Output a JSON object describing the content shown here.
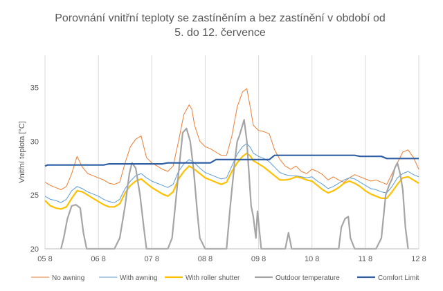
{
  "chart_data": {
    "type": "line",
    "title": "Porovnání vnitřní teploty se zastíněním a bez zastínění v období od 5. do 12. července",
    "title_lines": [
      "Porovnání vnitřní teploty se zastíněním a bez zastínění v období od",
      "5. do 12. července"
    ],
    "xlabel": "",
    "ylabel": "Vnitřní teplota [°C]",
    "xlim": [
      0,
      7
    ],
    "ylim": [
      20,
      38
    ],
    "x_ticks": [
      {
        "x": 0,
        "label": "05 8"
      },
      {
        "x": 1,
        "label": "06 8"
      },
      {
        "x": 2,
        "label": "07 8"
      },
      {
        "x": 3,
        "label": "08 8"
      },
      {
        "x": 4,
        "label": "09 8"
      },
      {
        "x": 5,
        "label": "10 8"
      },
      {
        "x": 6,
        "label": "11 8"
      },
      {
        "x": 7,
        "label": "12 8"
      }
    ],
    "y_ticks": [
      {
        "y": 20,
        "label": "20"
      },
      {
        "y": 25,
        "label": "25"
      },
      {
        "y": 30,
        "label": "30"
      },
      {
        "y": 35,
        "label": "35"
      }
    ],
    "grid": "vertical",
    "legend_position": "bottom",
    "series": [
      {
        "name": "No awning",
        "color": "#ED7D31",
        "width": 1,
        "points": [
          [
            0,
            26.2
          ],
          [
            0.1,
            25.9
          ],
          [
            0.2,
            25.7
          ],
          [
            0.3,
            25.5
          ],
          [
            0.4,
            25.8
          ],
          [
            0.5,
            27.0
          ],
          [
            0.6,
            28.6
          ],
          [
            0.7,
            27.6
          ],
          [
            0.8,
            27.0
          ],
          [
            0.9,
            26.8
          ],
          [
            1.0,
            26.6
          ],
          [
            1.1,
            26.4
          ],
          [
            1.2,
            26.1
          ],
          [
            1.3,
            26.0
          ],
          [
            1.4,
            26.2
          ],
          [
            1.5,
            28.0
          ],
          [
            1.6,
            29.5
          ],
          [
            1.7,
            30.2
          ],
          [
            1.8,
            30.5
          ],
          [
            1.85,
            29.5
          ],
          [
            1.9,
            28.5
          ],
          [
            2.0,
            28.0
          ],
          [
            2.1,
            27.7
          ],
          [
            2.2,
            27.4
          ],
          [
            2.3,
            27.2
          ],
          [
            2.4,
            27.7
          ],
          [
            2.5,
            30.0
          ],
          [
            2.6,
            32.5
          ],
          [
            2.7,
            33.4
          ],
          [
            2.75,
            33.0
          ],
          [
            2.8,
            31.5
          ],
          [
            2.9,
            30.0
          ],
          [
            3.0,
            29.5
          ],
          [
            3.1,
            29.3
          ],
          [
            3.2,
            29.0
          ],
          [
            3.3,
            28.7
          ],
          [
            3.4,
            28.7
          ],
          [
            3.5,
            30.5
          ],
          [
            3.6,
            33.2
          ],
          [
            3.7,
            34.6
          ],
          [
            3.78,
            34.9
          ],
          [
            3.85,
            33.0
          ],
          [
            3.9,
            31.5
          ],
          [
            4.0,
            31.0
          ],
          [
            4.1,
            30.9
          ],
          [
            4.2,
            30.7
          ],
          [
            4.3,
            29.2
          ],
          [
            4.4,
            28.3
          ],
          [
            4.5,
            27.7
          ],
          [
            4.6,
            27.4
          ],
          [
            4.7,
            27.7
          ],
          [
            4.8,
            27.2
          ],
          [
            4.9,
            27.0
          ],
          [
            5.0,
            27.4
          ],
          [
            5.1,
            27.2
          ],
          [
            5.2,
            26.9
          ],
          [
            5.3,
            26.4
          ],
          [
            5.4,
            26.7
          ],
          [
            5.5,
            26.4
          ],
          [
            5.6,
            26.2
          ],
          [
            5.7,
            26.6
          ],
          [
            5.8,
            26.9
          ],
          [
            5.9,
            26.7
          ],
          [
            6.0,
            26.5
          ],
          [
            6.1,
            26.3
          ],
          [
            6.2,
            26.4
          ],
          [
            6.3,
            26.2
          ],
          [
            6.4,
            26.0
          ],
          [
            6.5,
            27.0
          ],
          [
            6.6,
            28.0
          ],
          [
            6.7,
            29.0
          ],
          [
            6.8,
            29.2
          ],
          [
            6.9,
            28.5
          ],
          [
            7.0,
            27.4
          ]
        ]
      },
      {
        "name": "With awning",
        "color": "#5B9BD5",
        "width": 1,
        "points": [
          [
            0,
            24.9
          ],
          [
            0.1,
            24.6
          ],
          [
            0.2,
            24.5
          ],
          [
            0.3,
            24.3
          ],
          [
            0.4,
            24.6
          ],
          [
            0.5,
            25.4
          ],
          [
            0.6,
            25.8
          ],
          [
            0.7,
            25.6
          ],
          [
            0.8,
            25.3
          ],
          [
            0.9,
            25.1
          ],
          [
            1.0,
            24.9
          ],
          [
            1.1,
            24.6
          ],
          [
            1.2,
            24.4
          ],
          [
            1.3,
            24.3
          ],
          [
            1.4,
            24.6
          ],
          [
            1.5,
            25.6
          ],
          [
            1.6,
            26.3
          ],
          [
            1.7,
            26.8
          ],
          [
            1.8,
            27.0
          ],
          [
            1.9,
            26.6
          ],
          [
            2.0,
            26.3
          ],
          [
            2.1,
            26.1
          ],
          [
            2.2,
            25.9
          ],
          [
            2.3,
            25.7
          ],
          [
            2.4,
            26.0
          ],
          [
            2.5,
            27.2
          ],
          [
            2.6,
            27.9
          ],
          [
            2.7,
            28.3
          ],
          [
            2.8,
            28.0
          ],
          [
            2.9,
            27.5
          ],
          [
            3.0,
            27.1
          ],
          [
            3.1,
            26.9
          ],
          [
            3.2,
            26.7
          ],
          [
            3.3,
            26.5
          ],
          [
            3.4,
            26.6
          ],
          [
            3.5,
            27.7
          ],
          [
            3.6,
            28.8
          ],
          [
            3.7,
            29.5
          ],
          [
            3.78,
            29.8
          ],
          [
            3.85,
            29.4
          ],
          [
            3.9,
            28.9
          ],
          [
            4.0,
            28.6
          ],
          [
            4.1,
            28.4
          ],
          [
            4.2,
            28.1
          ],
          [
            4.3,
            27.6
          ],
          [
            4.4,
            27.1
          ],
          [
            4.5,
            26.9
          ],
          [
            4.6,
            26.8
          ],
          [
            4.7,
            26.8
          ],
          [
            4.8,
            26.7
          ],
          [
            4.9,
            26.6
          ],
          [
            5.0,
            26.7
          ],
          [
            5.1,
            26.3
          ],
          [
            5.2,
            26.0
          ],
          [
            5.3,
            25.6
          ],
          [
            5.4,
            25.8
          ],
          [
            5.5,
            26.1
          ],
          [
            5.6,
            26.4
          ],
          [
            5.7,
            26.6
          ],
          [
            5.8,
            26.5
          ],
          [
            5.9,
            26.2
          ],
          [
            6.0,
            25.9
          ],
          [
            6.1,
            25.6
          ],
          [
            6.2,
            25.5
          ],
          [
            6.3,
            25.3
          ],
          [
            6.4,
            25.2
          ],
          [
            6.5,
            25.8
          ],
          [
            6.6,
            26.6
          ],
          [
            6.7,
            27.0
          ],
          [
            6.8,
            27.2
          ],
          [
            6.9,
            26.9
          ],
          [
            7.0,
            26.7
          ]
        ]
      },
      {
        "name": "With roller shutter",
        "color": "#FFC000",
        "width": 2.2,
        "points": [
          [
            0,
            24.5
          ],
          [
            0.1,
            24.0
          ],
          [
            0.2,
            23.8
          ],
          [
            0.3,
            23.7
          ],
          [
            0.4,
            23.9
          ],
          [
            0.5,
            24.7
          ],
          [
            0.6,
            25.4
          ],
          [
            0.7,
            25.3
          ],
          [
            0.8,
            25.0
          ],
          [
            0.9,
            24.7
          ],
          [
            1.0,
            24.4
          ],
          [
            1.1,
            24.1
          ],
          [
            1.2,
            23.9
          ],
          [
            1.3,
            23.9
          ],
          [
            1.4,
            24.2
          ],
          [
            1.5,
            25.2
          ],
          [
            1.6,
            25.9
          ],
          [
            1.7,
            26.3
          ],
          [
            1.8,
            26.5
          ],
          [
            1.9,
            26.1
          ],
          [
            2.0,
            25.7
          ],
          [
            2.1,
            25.4
          ],
          [
            2.2,
            25.1
          ],
          [
            2.3,
            24.9
          ],
          [
            2.4,
            25.3
          ],
          [
            2.5,
            26.5
          ],
          [
            2.6,
            27.2
          ],
          [
            2.7,
            27.7
          ],
          [
            2.8,
            27.4
          ],
          [
            2.9,
            27.0
          ],
          [
            3.0,
            26.6
          ],
          [
            3.1,
            26.4
          ],
          [
            3.2,
            26.2
          ],
          [
            3.3,
            26.0
          ],
          [
            3.4,
            26.2
          ],
          [
            3.5,
            27.2
          ],
          [
            3.6,
            28.0
          ],
          [
            3.7,
            28.6
          ],
          [
            3.78,
            28.9
          ],
          [
            3.85,
            28.6
          ],
          [
            3.9,
            28.2
          ],
          [
            4.0,
            27.9
          ],
          [
            4.1,
            27.6
          ],
          [
            4.2,
            27.2
          ],
          [
            4.3,
            26.8
          ],
          [
            4.4,
            26.4
          ],
          [
            4.5,
            26.4
          ],
          [
            4.6,
            26.5
          ],
          [
            4.7,
            26.7
          ],
          [
            4.8,
            26.6
          ],
          [
            4.9,
            26.4
          ],
          [
            5.0,
            26.3
          ],
          [
            5.1,
            25.9
          ],
          [
            5.2,
            25.5
          ],
          [
            5.3,
            25.2
          ],
          [
            5.4,
            25.4
          ],
          [
            5.5,
            25.7
          ],
          [
            5.6,
            26.1
          ],
          [
            5.7,
            26.3
          ],
          [
            5.8,
            26.1
          ],
          [
            5.9,
            25.8
          ],
          [
            6.0,
            25.4
          ],
          [
            6.1,
            25.1
          ],
          [
            6.2,
            24.9
          ],
          [
            6.3,
            24.7
          ],
          [
            6.4,
            24.7
          ],
          [
            6.5,
            25.3
          ],
          [
            6.6,
            26.0
          ],
          [
            6.7,
            26.6
          ],
          [
            6.8,
            26.7
          ],
          [
            6.9,
            26.4
          ],
          [
            7.0,
            26.1
          ]
        ]
      },
      {
        "name": "Outdoor temperature",
        "color": "#A5A5A5",
        "width": 2.2,
        "points": [
          [
            0.3,
            18.0
          ],
          [
            0.35,
            21.0
          ],
          [
            0.42,
            22.8
          ],
          [
            0.5,
            24.0
          ],
          [
            0.58,
            24.1
          ],
          [
            0.66,
            23.8
          ],
          [
            0.72,
            21.5
          ],
          [
            0.78,
            19.0
          ],
          [
            1.0,
            16.0
          ],
          [
            1.3,
            18.0
          ],
          [
            1.4,
            21.0
          ],
          [
            1.5,
            24.0
          ],
          [
            1.58,
            27.0
          ],
          [
            1.63,
            28.0
          ],
          [
            1.7,
            27.5
          ],
          [
            1.78,
            25.0
          ],
          [
            1.85,
            22.0
          ],
          [
            1.9,
            19.5
          ],
          [
            2.1,
            16.0
          ],
          [
            2.3,
            18.0
          ],
          [
            2.38,
            21.0
          ],
          [
            2.45,
            24.5
          ],
          [
            2.52,
            28.0
          ],
          [
            2.58,
            30.8
          ],
          [
            2.65,
            31.2
          ],
          [
            2.72,
            30.0
          ],
          [
            2.78,
            27.5
          ],
          [
            2.85,
            23.5
          ],
          [
            2.9,
            21.0
          ],
          [
            2.95,
            20.5
          ],
          [
            3.0,
            19.0
          ],
          [
            3.3,
            17.0
          ],
          [
            3.4,
            20.0
          ],
          [
            3.47,
            24.0
          ],
          [
            3.55,
            28.0
          ],
          [
            3.6,
            30.0
          ],
          [
            3.64,
            30.5
          ],
          [
            3.7,
            31.5
          ],
          [
            3.73,
            32.0
          ],
          [
            3.78,
            30.0
          ],
          [
            3.82,
            27.0
          ],
          [
            3.86,
            24.0
          ],
          [
            3.9,
            23.0
          ],
          [
            3.95,
            21.0
          ],
          [
            3.98,
            23.5
          ],
          [
            4.02,
            21.5
          ],
          [
            4.05,
            20.0
          ],
          [
            4.1,
            19.0
          ],
          [
            4.15,
            17.0
          ],
          [
            4.45,
            17.5
          ],
          [
            4.5,
            19.5
          ],
          [
            4.56,
            21.5
          ],
          [
            4.62,
            19.5
          ],
          [
            4.68,
            17.5
          ],
          [
            5.4,
            18.0
          ],
          [
            5.5,
            19.5
          ],
          [
            5.55,
            22.0
          ],
          [
            5.62,
            22.8
          ],
          [
            5.68,
            23.0
          ],
          [
            5.72,
            21.0
          ],
          [
            5.8,
            18.0
          ],
          [
            6.2,
            18.0
          ],
          [
            6.3,
            21.0
          ],
          [
            6.38,
            25.0
          ],
          [
            6.45,
            26.0
          ],
          [
            6.5,
            26.5
          ],
          [
            6.55,
            27.5
          ],
          [
            6.6,
            28.0
          ],
          [
            6.65,
            27.0
          ],
          [
            6.7,
            25.5
          ],
          [
            6.75,
            22.0
          ],
          [
            6.8,
            19.0
          ]
        ]
      },
      {
        "name": "Comfort Limit",
        "color": "#2E5FA5",
        "width": 2.2,
        "points": [
          [
            0,
            27.7
          ],
          [
            0.05,
            27.8
          ],
          [
            1.1,
            27.8
          ],
          [
            1.2,
            27.9
          ],
          [
            2.2,
            27.9
          ],
          [
            2.3,
            28.0
          ],
          [
            3.1,
            28.0
          ],
          [
            3.2,
            28.3
          ],
          [
            4.2,
            28.3
          ],
          [
            4.3,
            28.7
          ],
          [
            5.8,
            28.7
          ],
          [
            5.9,
            28.6
          ],
          [
            6.3,
            28.6
          ],
          [
            6.4,
            28.4
          ],
          [
            7.0,
            28.4
          ]
        ]
      }
    ]
  }
}
